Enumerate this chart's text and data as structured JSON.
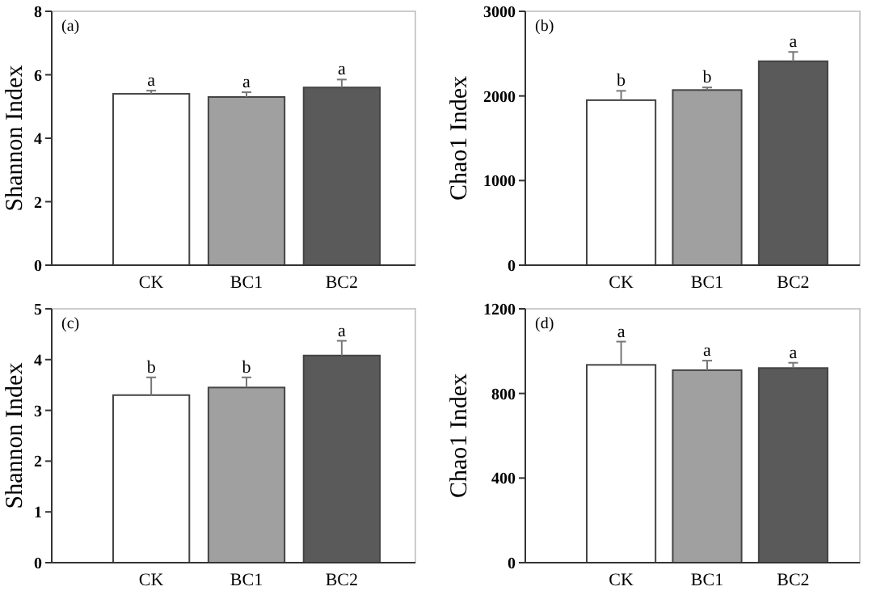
{
  "chart_data": [
    {
      "type": "bar",
      "ylabel": "Shannon Index",
      "categories": [
        "CK",
        "BC1",
        "BC2"
      ],
      "values": [
        5.4,
        5.3,
        5.6
      ],
      "colors": [
        "#ffffff",
        "#a0a0a0",
        "#5a5a5a"
      ],
      "errors": [
        [
          5.4,
          5.5
        ],
        [
          5.3,
          5.45
        ],
        [
          5.6,
          5.85
        ]
      ],
      "ylim": [
        0,
        8
      ],
      "yticks": [
        0,
        2,
        4,
        6,
        8
      ],
      "grid": false,
      "annotations": [
        "(a)",
        {
          "text": "a",
          "x": "CK",
          "y": 5.5
        },
        {
          "text": "a",
          "x": "BC1",
          "y": 5.45
        },
        {
          "text": "a",
          "x": "BC2",
          "y": 5.85
        }
      ]
    },
    {
      "type": "bar",
      "ylabel": "Chao1 Index",
      "categories": [
        "CK",
        "BC1",
        "BC2"
      ],
      "values": [
        1950,
        2070,
        2410
      ],
      "colors": [
        "#ffffff",
        "#a0a0a0",
        "#5a5a5a"
      ],
      "errors": [
        [
          1950,
          2060
        ],
        [
          2070,
          2100
        ],
        [
          2410,
          2520
        ]
      ],
      "ylim": [
        0,
        3000
      ],
      "yticks": [
        0,
        1000,
        2000,
        3000
      ],
      "grid": false,
      "annotations": [
        "(b)",
        {
          "text": "b",
          "x": "CK",
          "y": 2060
        },
        {
          "text": "b",
          "x": "BC1",
          "y": 2100
        },
        {
          "text": "a",
          "x": "BC2",
          "y": 2520
        }
      ]
    },
    {
      "type": "bar",
      "ylabel": "Shannon Index",
      "categories": [
        "CK",
        "BC1",
        "BC2"
      ],
      "values": [
        3.3,
        3.45,
        4.08
      ],
      "colors": [
        "#ffffff",
        "#a0a0a0",
        "#5a5a5a"
      ],
      "errors": [
        [
          3.3,
          3.65
        ],
        [
          3.45,
          3.65
        ],
        [
          4.08,
          4.37
        ]
      ],
      "ylim": [
        0,
        5
      ],
      "yticks": [
        0,
        1,
        2,
        3,
        4,
        5
      ],
      "grid": false,
      "annotations": [
        "(c)",
        {
          "text": "b",
          "x": "CK",
          "y": 3.65
        },
        {
          "text": "b",
          "x": "BC1",
          "y": 3.65
        },
        {
          "text": "a",
          "x": "BC2",
          "y": 4.37
        }
      ]
    },
    {
      "type": "bar",
      "ylabel": "Chao1 Index",
      "categories": [
        "CK",
        "BC1",
        "BC2"
      ],
      "values": [
        935,
        910,
        920
      ],
      "colors": [
        "#ffffff",
        "#a0a0a0",
        "#5a5a5a"
      ],
      "errors": [
        [
          935,
          1045
        ],
        [
          910,
          955
        ],
        [
          920,
          945
        ]
      ],
      "ylim": [
        0,
        1200
      ],
      "yticks": [
        0,
        400,
        800,
        1200
      ],
      "grid": false,
      "annotations": [
        "(d)",
        {
          "text": "a",
          "x": "CK",
          "y": 1045
        },
        {
          "text": "a",
          "x": "BC1",
          "y": 955
        },
        {
          "text": "a",
          "x": "BC2",
          "y": 945
        }
      ]
    }
  ]
}
